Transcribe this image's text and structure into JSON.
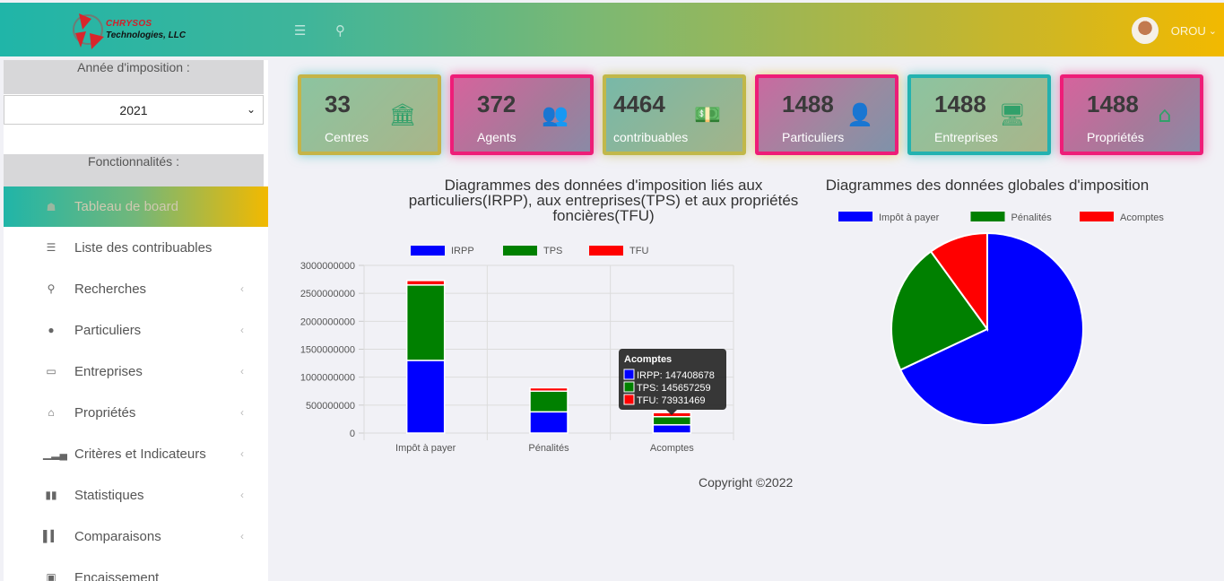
{
  "header": {
    "brand_line1": "CHRYSOS",
    "brand_line2": "Technologies, LLC",
    "menu_icon": "bars-icon",
    "search_icon": "search-icon",
    "user_name": "OROU",
    "user_chevron": "⌄"
  },
  "sidebar": {
    "year_label": "Année d'imposition :",
    "year_value": "2021",
    "features_label": "Fonctionnalités :",
    "items": [
      {
        "label": "Tableau de board",
        "icon": "home-icon",
        "glyph": "☗",
        "active": true,
        "arrow": ""
      },
      {
        "label": "Liste des contribuables",
        "icon": "list-icon",
        "glyph": "☰",
        "arrow": ""
      },
      {
        "label": "Recherches",
        "icon": "search-icon",
        "glyph": "⚲",
        "arrow": "‹"
      },
      {
        "label": "Particuliers",
        "icon": "user-icon",
        "glyph": "●",
        "arrow": "‹"
      },
      {
        "label": "Entreprises",
        "icon": "desktop-icon",
        "glyph": "▭",
        "arrow": "‹"
      },
      {
        "label": "Propriétés",
        "icon": "home-icon",
        "glyph": "⌂",
        "arrow": "‹"
      },
      {
        "label": "Critères et Indicateurs",
        "icon": "signal-icon",
        "glyph": "▁▂▄",
        "arrow": "‹"
      },
      {
        "label": "Statistiques",
        "icon": "bar-chart-icon",
        "glyph": "▮▮",
        "arrow": "‹"
      },
      {
        "label": "Comparaisons",
        "icon": "bar-chart-icon",
        "glyph": "▌▍",
        "arrow": "‹"
      },
      {
        "label": "Encaissement",
        "icon": "money-icon",
        "glyph": "▣",
        "arrow": ""
      }
    ]
  },
  "cards": [
    {
      "value": "33",
      "label": "Centres",
      "icon": "bank-icon",
      "glyph": "🏛"
    },
    {
      "value": "372",
      "label": "Agents",
      "icon": "users-icon",
      "glyph": "👥"
    },
    {
      "value": "4464",
      "label": "contribuables",
      "icon": "money-icon",
      "glyph": "💵"
    },
    {
      "value": "1488",
      "label": "Particuliers",
      "icon": "user-icon",
      "glyph": "👤"
    },
    {
      "value": "1488",
      "label": "Entreprises",
      "icon": "desktop-icon",
      "glyph": "🖥"
    },
    {
      "value": "1488",
      "label": "Propriétés",
      "icon": "home-icon",
      "glyph": "⌂"
    }
  ],
  "chart_data": [
    {
      "type": "bar",
      "stacked": true,
      "title_lines": [
        "Diagrammes des données d'imposition liés aux",
        "particuliers(IRPP), aux entreprises(TPS) et aux propriétés",
        "foncières(TFU)"
      ],
      "categories": [
        "Impôt à payer",
        "Pénalités",
        "Acomptes"
      ],
      "series": [
        {
          "name": "IRPP",
          "color": "#0000ff",
          "values": [
            1300000000,
            380000000,
            147408678
          ]
        },
        {
          "name": "TPS",
          "color": "#008000",
          "values": [
            1350000000,
            370000000,
            145657259
          ]
        },
        {
          "name": "TFU",
          "color": "#ff0000",
          "values": [
            80000000,
            60000000,
            73931469
          ]
        }
      ],
      "ylim": [
        0,
        3000000000
      ],
      "yticks": [
        "3000000000",
        "2500000000",
        "2000000000",
        "1500000000",
        "1000000000",
        "500000000",
        "0"
      ],
      "legend": "top",
      "grid": true,
      "tooltip": {
        "title": "Acomptes",
        "lines": [
          "IRPP: 147408678",
          "TPS: 145657259",
          "TFU: 73931469"
        ]
      }
    },
    {
      "type": "pie",
      "title": "Diagrammes des données globales d'imposition",
      "labels": [
        "Impôt à payer",
        "Pénalités",
        "Acomptes"
      ],
      "values": [
        68,
        22,
        10
      ],
      "colors": [
        "#0000ff",
        "#008000",
        "#ff0000"
      ],
      "legend": "top"
    }
  ],
  "footer": "Copyright ©2022"
}
